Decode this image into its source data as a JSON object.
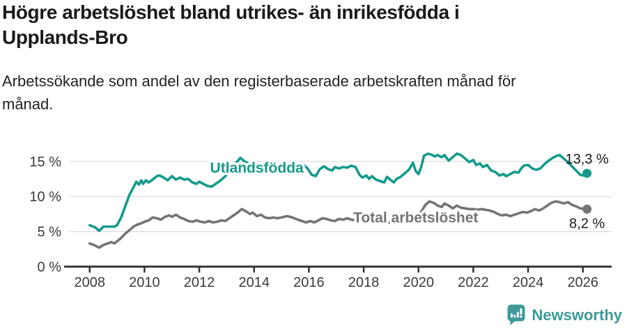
{
  "header": {
    "title": "Högre arbetslöshet bland utrikes- än inrikesfödda i\nUpplands-Bro",
    "subtitle": "Arbetssökande som andel av den registerbaserade arbetskraften månad för\nmånad."
  },
  "branding": {
    "logo_text": "Newsworthy",
    "logo_color": "#3f9a98",
    "logo_icon": "speech-bubble-bar-chart-icon"
  },
  "colors": {
    "foreign_born_line": "#149a8c",
    "total_line": "#737477",
    "grid": "#d9d9d9",
    "axis": "#333333",
    "tick_text": "#3a3a3a",
    "value_text": "#1a1a1a"
  },
  "chart_data": {
    "type": "line",
    "title": "Högre arbetslöshet bland utrikes- än inrikesfödda i Upplands-Bro",
    "subtitle": "Arbetssökande som andel av den registerbaserade arbetskraften månad för månad.",
    "unit": "%",
    "grid": true,
    "legend_position": "inline-labels",
    "x_axis": {
      "range": [
        2007.27,
        2027.05
      ],
      "ticks": [
        2008,
        2010,
        2012,
        2014,
        2016,
        2018,
        2020,
        2022,
        2024,
        2026
      ]
    },
    "y_axis": {
      "range": [
        0,
        17.66
      ],
      "gridlines": [
        5,
        10,
        15
      ],
      "ticks": [
        {
          "value": 0,
          "label": "0 %"
        },
        {
          "value": 5,
          "label": "5 %"
        },
        {
          "value": 10,
          "label": "10 %"
        },
        {
          "value": 15,
          "label": "15 %"
        }
      ]
    },
    "series": [
      {
        "name": "Utlandsfödda",
        "color": "#149a8c",
        "label_at": [
          2014.1,
          13.4
        ],
        "end_label": "13,3 %",
        "end_label_side": "above",
        "end_value": 13.3,
        "points": [
          [
            2008.0,
            5.9
          ],
          [
            2008.2,
            5.6
          ],
          [
            2008.35,
            5.1
          ],
          [
            2008.5,
            5.7
          ],
          [
            2008.7,
            5.7
          ],
          [
            2008.9,
            5.7
          ],
          [
            2009.0,
            5.9
          ],
          [
            2009.15,
            7.0
          ],
          [
            2009.3,
            8.6
          ],
          [
            2009.45,
            10.2
          ],
          [
            2009.6,
            11.3
          ],
          [
            2009.7,
            12.1
          ],
          [
            2009.8,
            11.7
          ],
          [
            2009.88,
            12.3
          ],
          [
            2009.95,
            11.8
          ],
          [
            2010.05,
            12.3
          ],
          [
            2010.15,
            12.0
          ],
          [
            2010.3,
            12.4
          ],
          [
            2010.45,
            12.9
          ],
          [
            2010.55,
            13.0
          ],
          [
            2010.7,
            12.7
          ],
          [
            2010.85,
            12.3
          ],
          [
            2011.0,
            12.9
          ],
          [
            2011.15,
            12.4
          ],
          [
            2011.3,
            12.7
          ],
          [
            2011.45,
            12.4
          ],
          [
            2011.6,
            12.5
          ],
          [
            2011.75,
            12.0
          ],
          [
            2011.9,
            11.8
          ],
          [
            2012.0,
            12.1
          ],
          [
            2012.15,
            11.8
          ],
          [
            2012.3,
            11.5
          ],
          [
            2012.45,
            11.4
          ],
          [
            2012.6,
            11.8
          ],
          [
            2012.75,
            12.2
          ],
          [
            2012.9,
            12.7
          ],
          [
            2013.05,
            13.3
          ],
          [
            2013.2,
            14.0
          ],
          [
            2013.35,
            14.8
          ],
          [
            2013.5,
            15.5
          ],
          [
            2013.65,
            15.0
          ],
          [
            2013.8,
            14.7
          ],
          [
            2014.0,
            14.5
          ],
          [
            2014.2,
            14.2
          ],
          [
            2014.4,
            14.4
          ],
          [
            2014.6,
            14.1
          ],
          [
            2014.8,
            14.3
          ],
          [
            2015.0,
            14.1
          ],
          [
            2015.2,
            14.0
          ],
          [
            2015.4,
            14.2
          ],
          [
            2015.6,
            14.3
          ],
          [
            2015.8,
            14.5
          ],
          [
            2015.95,
            14.0
          ],
          [
            2016.1,
            13.1
          ],
          [
            2016.25,
            12.9
          ],
          [
            2016.4,
            13.9
          ],
          [
            2016.55,
            14.3
          ],
          [
            2016.7,
            13.9
          ],
          [
            2016.85,
            13.7
          ],
          [
            2016.95,
            14.2
          ],
          [
            2017.1,
            14.0
          ],
          [
            2017.25,
            14.2
          ],
          [
            2017.4,
            14.1
          ],
          [
            2017.55,
            14.4
          ],
          [
            2017.7,
            14.2
          ],
          [
            2017.85,
            13.1
          ],
          [
            2017.95,
            12.7
          ],
          [
            2018.1,
            13.0
          ],
          [
            2018.2,
            12.5
          ],
          [
            2018.3,
            12.9
          ],
          [
            2018.45,
            12.4
          ],
          [
            2018.6,
            12.2
          ],
          [
            2018.75,
            12.0
          ],
          [
            2018.85,
            12.8
          ],
          [
            2019.0,
            12.3
          ],
          [
            2019.1,
            12.0
          ],
          [
            2019.2,
            12.5
          ],
          [
            2019.35,
            12.8
          ],
          [
            2019.5,
            13.3
          ],
          [
            2019.65,
            13.8
          ],
          [
            2019.8,
            14.8
          ],
          [
            2019.9,
            13.6
          ],
          [
            2020.0,
            13.2
          ],
          [
            2020.1,
            14.2
          ],
          [
            2020.2,
            15.8
          ],
          [
            2020.35,
            16.1
          ],
          [
            2020.5,
            15.9
          ],
          [
            2020.6,
            15.7
          ],
          [
            2020.7,
            15.9
          ],
          [
            2020.85,
            15.6
          ],
          [
            2020.95,
            15.9
          ],
          [
            2021.1,
            15.1
          ],
          [
            2021.25,
            15.6
          ],
          [
            2021.4,
            16.1
          ],
          [
            2021.55,
            15.9
          ],
          [
            2021.7,
            15.4
          ],
          [
            2021.85,
            14.9
          ],
          [
            2022.0,
            15.2
          ],
          [
            2022.1,
            14.5
          ],
          [
            2022.25,
            14.7
          ],
          [
            2022.35,
            14.2
          ],
          [
            2022.5,
            14.5
          ],
          [
            2022.65,
            13.7
          ],
          [
            2022.8,
            13.5
          ],
          [
            2022.95,
            13.0
          ],
          [
            2023.1,
            13.2
          ],
          [
            2023.2,
            12.9
          ],
          [
            2023.35,
            13.2
          ],
          [
            2023.5,
            13.5
          ],
          [
            2023.65,
            13.4
          ],
          [
            2023.75,
            14.0
          ],
          [
            2023.85,
            14.4
          ],
          [
            2024.0,
            14.5
          ],
          [
            2024.15,
            14.0
          ],
          [
            2024.3,
            13.8
          ],
          [
            2024.45,
            14.0
          ],
          [
            2024.6,
            14.6
          ],
          [
            2024.75,
            15.1
          ],
          [
            2024.9,
            15.5
          ],
          [
            2025.05,
            15.8
          ],
          [
            2025.15,
            15.9
          ],
          [
            2025.3,
            15.4
          ],
          [
            2025.45,
            14.9
          ],
          [
            2025.6,
            14.3
          ],
          [
            2025.75,
            13.7
          ],
          [
            2025.9,
            13.1
          ],
          [
            2026.0,
            13.0
          ],
          [
            2026.15,
            13.3
          ]
        ]
      },
      {
        "name": "Total arbetslöshet",
        "color": "#737477",
        "label_at": [
          2019.9,
          6.3
        ],
        "end_label": "8,2 %",
        "end_label_side": "below",
        "end_value": 8.2,
        "points": [
          [
            2008.0,
            3.3
          ],
          [
            2008.15,
            3.1
          ],
          [
            2008.35,
            2.7
          ],
          [
            2008.5,
            3.1
          ],
          [
            2008.65,
            3.3
          ],
          [
            2008.8,
            3.5
          ],
          [
            2008.9,
            3.3
          ],
          [
            2009.0,
            3.6
          ],
          [
            2009.15,
            4.1
          ],
          [
            2009.3,
            4.7
          ],
          [
            2009.45,
            5.2
          ],
          [
            2009.6,
            5.7
          ],
          [
            2009.75,
            6.0
          ],
          [
            2009.9,
            6.2
          ],
          [
            2010.0,
            6.4
          ],
          [
            2010.15,
            6.6
          ],
          [
            2010.3,
            7.0
          ],
          [
            2010.45,
            6.9
          ],
          [
            2010.6,
            6.7
          ],
          [
            2010.75,
            7.1
          ],
          [
            2010.9,
            7.3
          ],
          [
            2011.0,
            7.1
          ],
          [
            2011.15,
            7.4
          ],
          [
            2011.3,
            7.0
          ],
          [
            2011.45,
            6.8
          ],
          [
            2011.6,
            6.5
          ],
          [
            2011.75,
            6.4
          ],
          [
            2011.9,
            6.6
          ],
          [
            2012.05,
            6.4
          ],
          [
            2012.2,
            6.3
          ],
          [
            2012.35,
            6.5
          ],
          [
            2012.5,
            6.3
          ],
          [
            2012.65,
            6.4
          ],
          [
            2012.8,
            6.6
          ],
          [
            2012.95,
            6.5
          ],
          [
            2013.1,
            6.9
          ],
          [
            2013.25,
            7.3
          ],
          [
            2013.4,
            7.7
          ],
          [
            2013.55,
            8.2
          ],
          [
            2013.7,
            7.9
          ],
          [
            2013.85,
            7.5
          ],
          [
            2013.95,
            7.7
          ],
          [
            2014.1,
            7.2
          ],
          [
            2014.25,
            7.4
          ],
          [
            2014.4,
            7.0
          ],
          [
            2014.55,
            6.9
          ],
          [
            2014.7,
            7.0
          ],
          [
            2014.85,
            6.9
          ],
          [
            2015.0,
            7.0
          ],
          [
            2015.2,
            7.2
          ],
          [
            2015.4,
            7.0
          ],
          [
            2015.6,
            6.7
          ],
          [
            2015.75,
            6.5
          ],
          [
            2015.9,
            6.3
          ],
          [
            2016.05,
            6.5
          ],
          [
            2016.2,
            6.3
          ],
          [
            2016.35,
            6.6
          ],
          [
            2016.5,
            6.9
          ],
          [
            2016.65,
            6.8
          ],
          [
            2016.8,
            6.6
          ],
          [
            2016.95,
            6.5
          ],
          [
            2017.1,
            6.8
          ],
          [
            2017.25,
            6.7
          ],
          [
            2017.4,
            6.9
          ],
          [
            2017.55,
            6.7
          ],
          [
            2017.7,
            6.6
          ],
          [
            2017.85,
            6.5
          ],
          [
            2018.0,
            6.4
          ],
          [
            2018.2,
            6.3
          ],
          [
            2018.4,
            6.4
          ],
          [
            2018.6,
            6.3
          ],
          [
            2018.8,
            6.3
          ],
          [
            2019.0,
            6.3
          ],
          [
            2019.2,
            6.4
          ],
          [
            2019.4,
            6.4
          ],
          [
            2019.6,
            6.5
          ],
          [
            2019.8,
            6.6
          ],
          [
            2019.95,
            6.9
          ],
          [
            2020.1,
            7.8
          ],
          [
            2020.25,
            8.8
          ],
          [
            2020.4,
            9.3
          ],
          [
            2020.55,
            9.1
          ],
          [
            2020.7,
            8.7
          ],
          [
            2020.85,
            8.5
          ],
          [
            2020.95,
            9.0
          ],
          [
            2021.1,
            8.7
          ],
          [
            2021.25,
            8.3
          ],
          [
            2021.4,
            8.7
          ],
          [
            2021.55,
            8.4
          ],
          [
            2021.7,
            8.3
          ],
          [
            2021.85,
            8.2
          ],
          [
            2022.0,
            8.2
          ],
          [
            2022.15,
            8.1
          ],
          [
            2022.3,
            8.2
          ],
          [
            2022.45,
            8.1
          ],
          [
            2022.6,
            8.0
          ],
          [
            2022.75,
            7.8
          ],
          [
            2022.9,
            7.5
          ],
          [
            2023.05,
            7.3
          ],
          [
            2023.2,
            7.4
          ],
          [
            2023.35,
            7.2
          ],
          [
            2023.5,
            7.4
          ],
          [
            2023.65,
            7.6
          ],
          [
            2023.8,
            7.8
          ],
          [
            2023.95,
            7.7
          ],
          [
            2024.1,
            7.9
          ],
          [
            2024.25,
            8.2
          ],
          [
            2024.4,
            8.0
          ],
          [
            2024.55,
            8.3
          ],
          [
            2024.7,
            8.7
          ],
          [
            2024.85,
            9.1
          ],
          [
            2025.0,
            9.3
          ],
          [
            2025.15,
            9.2
          ],
          [
            2025.3,
            9.0
          ],
          [
            2025.45,
            9.2
          ],
          [
            2025.6,
            8.8
          ],
          [
            2025.75,
            8.6
          ],
          [
            2025.9,
            8.3
          ],
          [
            2026.15,
            8.2
          ]
        ]
      }
    ]
  }
}
